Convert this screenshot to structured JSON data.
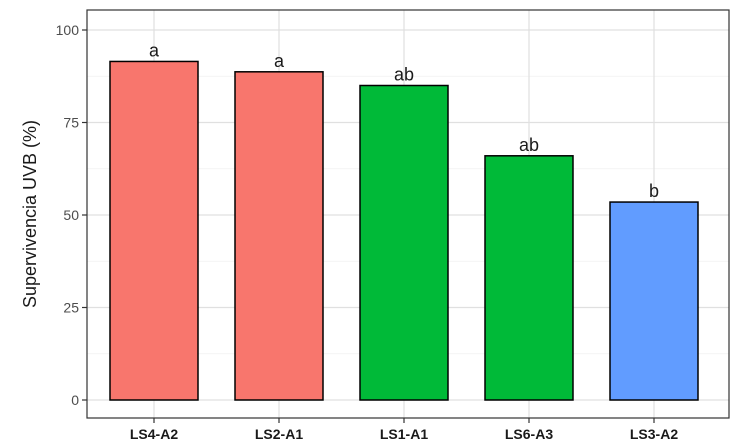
{
  "chart_data": {
    "type": "bar",
    "title": "",
    "xlabel": "",
    "ylabel": "Supervivencia UVB (%)",
    "ylim": [
      0,
      100
    ],
    "yticks": [
      0,
      25,
      50,
      75,
      100
    ],
    "grid": true,
    "categories": [
      "LS4-A2",
      "LS2-A1",
      "LS1-A1",
      "LS6-A3",
      "LS3-A2"
    ],
    "values": [
      91.5,
      88.7,
      85.0,
      66.0,
      53.5
    ],
    "labels": [
      "a",
      "a",
      "ab",
      "ab",
      "b"
    ],
    "colors": [
      "#F8766D",
      "#F8766D",
      "#00BA38",
      "#00BA38",
      "#619CFF"
    ]
  }
}
